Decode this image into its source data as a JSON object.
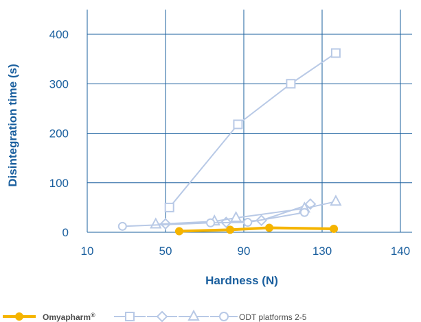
{
  "chart_data": {
    "type": "line",
    "xlabel": "Hardness (N)",
    "ylabel": "Disintegration time (s)",
    "xlim": [
      10,
      140
    ],
    "ylim": [
      0,
      400
    ],
    "xticks": [
      10,
      50,
      90,
      130,
      140
    ],
    "xtick_labels": [
      "10",
      "50",
      "90",
      "130",
      "140"
    ],
    "yticks": [
      0,
      100,
      200,
      300,
      400
    ],
    "ytick_labels": [
      "0",
      "100",
      "200",
      "300",
      "400"
    ],
    "grid": true,
    "legend": {
      "placement": "bottom",
      "highlight_label": "Omyapharm",
      "highlight_mark": "®",
      "group_label": "ODT platforms 2-5"
    },
    "colors": {
      "highlight": "#f5b400",
      "others": "#b8c9e6",
      "grid": "#1a5f9e",
      "text": "#1a5f9e"
    },
    "series": [
      {
        "marker": "circle-filled",
        "color": "#f5b400",
        "x": [
          57,
          83,
          103,
          136
        ],
        "y": [
          2,
          5,
          9,
          7
        ]
      },
      {
        "marker": "square",
        "color": "#b8c9e6",
        "x": [
          52,
          87,
          114,
          137
        ],
        "y": [
          50,
          218,
          300,
          362
        ]
      },
      {
        "marker": "diamond",
        "color": "#b8c9e6",
        "x": [
          50,
          81,
          99,
          124
        ],
        "y": [
          17,
          20,
          24,
          57
        ]
      },
      {
        "marker": "triangle",
        "color": "#b8c9e6",
        "x": [
          45,
          75,
          86,
          121,
          137
        ],
        "y": [
          16,
          22,
          29,
          48,
          62
        ]
      },
      {
        "marker": "circle",
        "color": "#b8c9e6",
        "x": [
          28,
          73,
          92,
          121
        ],
        "y": [
          12,
          19,
          20,
          40
        ]
      }
    ]
  }
}
